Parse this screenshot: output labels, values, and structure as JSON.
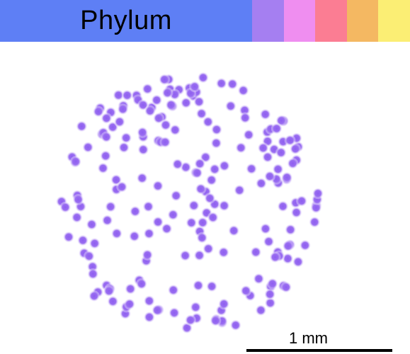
{
  "header": {
    "title": "Phylum",
    "title_color": "#5e7ff5",
    "swatches": [
      {
        "name": "swatch-purple",
        "color": "#a57ff1"
      },
      {
        "name": "swatch-pink",
        "color": "#ef8ef0"
      },
      {
        "name": "swatch-rose",
        "color": "#fb7d93"
      },
      {
        "name": "swatch-orange",
        "color": "#f4b862"
      },
      {
        "name": "swatch-yellow",
        "color": "#fbee74"
      }
    ]
  },
  "specimen": {
    "dot_color": "#8e5ef0",
    "dot_highlight": "#ffffff"
  },
  "scale": {
    "label": "1 mm"
  }
}
